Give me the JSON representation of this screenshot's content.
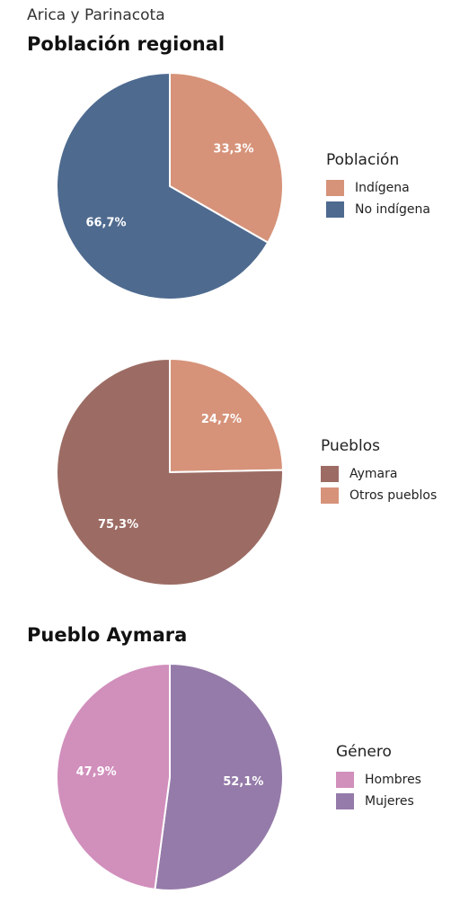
{
  "supertitle": "Arica y Parinacota",
  "sections": {
    "regional_title": "Población regional",
    "aymara_title": "Pueblo Aymara"
  },
  "chart_data": [
    {
      "type": "pie",
      "title": "Población regional",
      "legend_title": "Población",
      "legend_position": "right",
      "slices": [
        {
          "name": "Indígena",
          "value": 33.3,
          "label": "33,3%",
          "color": "#d6937a"
        },
        {
          "name": "No indígena",
          "value": 66.7,
          "label": "66,7%",
          "color": "#4e6a8f"
        }
      ]
    },
    {
      "type": "pie",
      "legend_title": "Pueblos",
      "legend_position": "right",
      "slices": [
        {
          "name": "Otros pueblos",
          "value": 24.7,
          "label": "24,7%",
          "color": "#d6937a"
        },
        {
          "name": "Aymara",
          "value": 75.3,
          "label": "75,3%",
          "color": "#9c6c64"
        }
      ],
      "legend_order": [
        "Aymara",
        "Otros pueblos"
      ]
    },
    {
      "type": "pie",
      "title": "Pueblo Aymara",
      "legend_title": "Género",
      "legend_position": "right",
      "slices": [
        {
          "name": "Mujeres",
          "value": 52.1,
          "label": "52,1%",
          "color": "#957ba9"
        },
        {
          "name": "Hombres",
          "value": 47.9,
          "label": "47,9%",
          "color": "#d18fbc"
        }
      ],
      "legend_order": [
        "Hombres",
        "Mujeres"
      ]
    }
  ]
}
